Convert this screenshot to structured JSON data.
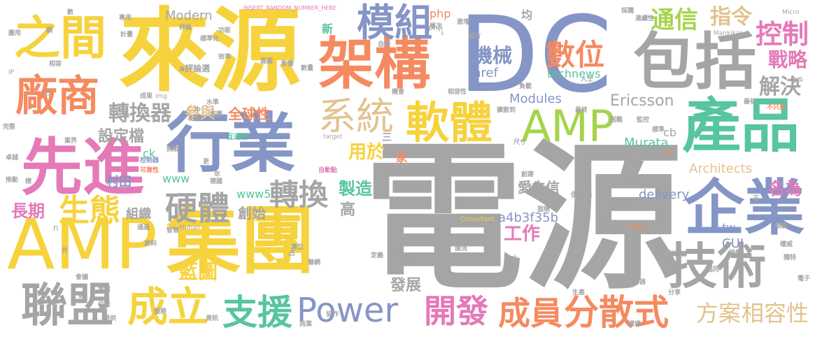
{
  "words": [
    {
      "text": "電源",
      "color": "#a5a5a5"
    },
    {
      "text": "DC",
      "color": "#8595c6"
    },
    {
      "text": "來源",
      "color": "#f6d23c"
    },
    {
      "text": "AMP",
      "color": "#f6d23c"
    },
    {
      "text": "集團",
      "color": "#f6d23c"
    },
    {
      "text": "先進",
      "color": "#e47ab8"
    },
    {
      "text": "行業",
      "color": "#8595c6"
    },
    {
      "text": "架構",
      "color": "#f58a60"
    },
    {
      "text": "包括",
      "color": "#a5a5a5"
    },
    {
      "text": "AMP",
      "color": "#a5d44c"
    },
    {
      "text": "產品",
      "color": "#57c59f"
    },
    {
      "text": "企業",
      "color": "#8595c6"
    },
    {
      "text": "技術",
      "color": "#a5a5a5"
    },
    {
      "text": "軟體",
      "color": "#f6d23c"
    },
    {
      "text": "之間",
      "color": "#f6d23c"
    },
    {
      "text": "廠商",
      "color": "#f58a60"
    },
    {
      "text": "模組",
      "color": "#8595c6"
    },
    {
      "text": "Power",
      "color": "#8595c6"
    },
    {
      "text": "聯盟",
      "color": "#a5a5a5"
    },
    {
      "text": "成立",
      "color": "#f6d23c"
    },
    {
      "text": "支援",
      "color": "#57c59f"
    },
    {
      "text": "開發",
      "color": "#e47ab8"
    },
    {
      "text": "成員",
      "color": "#f58a60"
    },
    {
      "text": "分散式",
      "color": "#f58a60"
    },
    {
      "text": "系統",
      "color": "#e2c38e"
    },
    {
      "text": "數位",
      "color": "#f58a60"
    },
    {
      "text": "控制",
      "color": "#e47ab8"
    },
    {
      "text": "通信",
      "color": "#a5d44c"
    },
    {
      "text": "指令",
      "color": "#e2c38e"
    },
    {
      "text": "機械",
      "color": "#8595c6"
    },
    {
      "text": "戰略",
      "color": "#e47ab8"
    },
    {
      "text": "解決",
      "color": "#a5a5a5"
    },
    {
      "text": "硬體",
      "color": "#a5a5a5"
    },
    {
      "text": "轉換",
      "color": "#a5a5a5"
    },
    {
      "text": "生態",
      "color": "#f6d23c"
    },
    {
      "text": "轉換器",
      "color": "#a5a5a5"
    },
    {
      "text": "方案",
      "color": "#e2c38e"
    },
    {
      "text": "相容性",
      "color": "#e2c38e"
    },
    {
      "text": "名為",
      "color": "#e47ab8"
    },
    {
      "text": "藍圖",
      "color": "#f6d23c"
    },
    {
      "text": "工作",
      "color": "#e47ab8"
    },
    {
      "text": "用於",
      "color": "#f6d23c"
    },
    {
      "text": "長期",
      "color": "#e47ab8"
    },
    {
      "text": "Modern",
      "color": "#a5a5a5"
    },
    {
      "text": "Ericsson",
      "color": "#a5a5a5"
    },
    {
      "text": "Architects",
      "color": "#e2c38e"
    },
    {
      "text": "Modules",
      "color": "#8595c6"
    },
    {
      "text": "Murata",
      "color": "#57c59f"
    },
    {
      "text": "delivery",
      "color": "#8595c6"
    },
    {
      "text": "a4b3f35b",
      "color": "#8595c6"
    },
    {
      "text": "設定檔",
      "color": "#a5a5a5"
    },
    {
      "text": "參與",
      "color": "#e2c38e"
    },
    {
      "text": "全球性",
      "color": "#f58a60"
    },
    {
      "text": "村田",
      "color": "#8595c6"
    },
    {
      "text": "製造",
      "color": "#57c59f"
    },
    {
      "text": "創始",
      "color": "#a5a5a5"
    },
    {
      "text": "組織",
      "color": "#a5a5a5"
    },
    {
      "text": "愛立信",
      "color": "#a5a5a5"
    },
    {
      "text": "發展",
      "color": "#a5a5a5"
    },
    {
      "text": "www5",
      "color": "#57c59f"
    },
    {
      "text": "www",
      "color": "#57c59f"
    },
    {
      "text": "href",
      "color": "#8595c6"
    },
    {
      "text": "technews",
      "color": "#57c59f"
    },
    {
      "text": "php",
      "color": "#f58a60"
    },
    {
      "text": "CUI",
      "color": "#8595c6"
    },
    {
      "text": "高",
      "color": "#a5a5a5"
    },
    {
      "text": "家",
      "color": "#f58a60"
    },
    {
      "text": "ck",
      "color": "#57c59f"
    },
    {
      "text": "tw",
      "color": "#8595c6"
    },
    {
      "text": "cb",
      "color": "#a5a5a5"
    },
    {
      "text": "新",
      "color": "#57c59f"
    },
    {
      "text": "均",
      "color": "#a5a5a5"
    },
    {
      "text": "php",
      "color": "#a5a5a5"
    },
    {
      "text": "n",
      "color": "#a5a5a5"
    },
    {
      "text": "INSERT_RANDOM_NUMBER_HERE",
      "color": "#e47ab8"
    },
    {
      "text": "Mankikar",
      "color": "#a5a5a5"
    },
    {
      "text": "Mohan",
      "color": "#a5a5a5"
    },
    {
      "text": "Consultant",
      "color": "#f6d23c"
    },
    {
      "text": "PMBus",
      "color": "#f58a60"
    },
    {
      "text": "Tech",
      "color": "#a5a5a5"
    },
    {
      "text": "target",
      "color": "#a5a5a5"
    },
    {
      "text": "_blank",
      "color": "#a5a5a5"
    },
    {
      "text": "img",
      "color": "#a5a5a5"
    },
    {
      "text": "Micro",
      "color": "#a5a5a5"
    },
    {
      "text": "AC",
      "color": "#f58a60"
    },
    {
      "text": "自動點",
      "color": "#e47ab8"
    },
    {
      "text": "互通性",
      "color": "#57c59f"
    },
    {
      "text": "可靠性",
      "color": "#f58a60"
    },
    {
      "text": "標準化",
      "color": "#a5a5a5"
    },
    {
      "text": "控制器",
      "color": "#8595c6"
    },
    {
      "text": "連續性",
      "color": "#a5a5a5"
    },
    {
      "text": "供應鏈",
      "color": "#a5a5a5"
    },
    {
      "text": "嘉尼克",
      "color": "#a5a5a5"
    },
    {
      "text": "驅動器",
      "color": "#a5a5a5"
    },
    {
      "text": "不只是",
      "color": "#f58a60"
    },
    {
      "text": "計畫",
      "color": "#a5a5a5"
    },
    {
      "text": "功能",
      "color": "#a5a5a5"
    },
    {
      "text": "效率",
      "color": "#a5a5a5"
    },
    {
      "text": "相容",
      "color": "#a5a5a5"
    },
    {
      "text": "成果",
      "color": "#a5a5a5"
    },
    {
      "text": "點擊",
      "color": "#a5a5a5"
    },
    {
      "text": "首圖",
      "color": "#a5a5a5"
    },
    {
      "text": "水準",
      "color": "#a5a5a5"
    },
    {
      "text": "評論",
      "color": "#a5a5a5"
    },
    {
      "text": "專用",
      "color": "#a5a5a5"
    },
    {
      "text": "層次",
      "color": "#a5a5a5"
    },
    {
      "text": "擴散到",
      "color": "#a5a5a5"
    },
    {
      "text": "最終",
      "color": "#a5a5a5"
    },
    {
      "text": "困難",
      "color": "#a5a5a5"
    },
    {
      "text": "標準",
      "color": "#a5a5a5"
    },
    {
      "text": "監控",
      "color": "#a5a5a5"
    },
    {
      "text": "尺寸",
      "color": "#a5a5a5"
    },
    {
      "text": "更多",
      "color": "#a5a5a5"
    },
    {
      "text": "創建",
      "color": "#a5a5a5"
    },
    {
      "text": "面積",
      "color": "#a5a5a5"
    },
    {
      "text": "建立",
      "color": "#a5a5a5"
    },
    {
      "text": "電氣",
      "color": "#a5a5a5"
    },
    {
      "text": "匯流",
      "color": "#a5a5a5"
    },
    {
      "text": "協同",
      "color": "#a5a5a5"
    },
    {
      "text": "權威",
      "color": "#a5a5a5"
    },
    {
      "text": "規範",
      "color": "#a5a5a5"
    },
    {
      "text": "獨特",
      "color": "#a5a5a5"
    },
    {
      "text": "電子",
      "color": "#a5a5a5"
    },
    {
      "text": "分享",
      "color": "#a5a5a5"
    },
    {
      "text": "環境",
      "color": "#a5a5a5"
    },
    {
      "text": "生產",
      "color": "#a5a5a5"
    },
    {
      "text": "協作",
      "color": "#a5a5a5"
    },
    {
      "text": "商業",
      "color": "#a5a5a5"
    },
    {
      "text": "資訊",
      "color": "#a5a5a5"
    },
    {
      "text": "電信",
      "color": "#a5a5a5"
    },
    {
      "text": "提供",
      "color": "#a5a5a5"
    },
    {
      "text": "位元",
      "color": "#a5a5a5"
    },
    {
      "text": "完整",
      "color": "#a5a5a5"
    },
    {
      "text": "卓越",
      "color": "#a5a5a5"
    },
    {
      "text": "推動",
      "color": "#a5a5a5"
    },
    {
      "text": "圖用",
      "color": "#a5a5a5"
    },
    {
      "text": "客戶",
      "color": "#a5a5a5"
    },
    {
      "text": "採購",
      "color": "#a5a5a5"
    },
    {
      "text": "人士",
      "color": "#a5a5a5"
    },
    {
      "text": "最初",
      "color": "#a5a5a5"
    },
    {
      "text": "業界",
      "color": "#a5a5a5"
    },
    {
      "text": "挑戰",
      "color": "#a5a5a5"
    },
    {
      "text": "資料",
      "color": "#a5a5a5"
    },
    {
      "text": "流量",
      "color": "#a5a5a5"
    },
    {
      "text": "定義",
      "color": "#a5a5a5"
    },
    {
      "text": "德國",
      "color": "#a5a5a5"
    },
    {
      "text": "聯網",
      "color": "#a5a5a5"
    },
    {
      "text": "自動",
      "color": "#a5a5a5"
    },
    {
      "text": "激增",
      "color": "#a5a5a5"
    },
    {
      "text": "智慧",
      "color": "#a5a5a5"
    },
    {
      "text": "通過",
      "color": "#a5a5a5"
    },
    {
      "text": "會議",
      "color": "#a5a5a5"
    },
    {
      "text": "服務",
      "color": "#a5a5a5"
    },
    {
      "text": "持續",
      "color": "#a5a5a5"
    },
    {
      "text": "負載",
      "color": "#a5a5a5"
    },
    {
      "text": "相容性",
      "color": "#a5a5a5"
    },
    {
      "text": "機會",
      "color": "#a5a5a5"
    },
    {
      "text": "晶片",
      "color": "#a5a5a5"
    },
    {
      "text": "晶圓",
      "color": "#a5a5a5"
    },
    {
      "text": "影響",
      "color": "#a5a5a5"
    },
    {
      "text": "數量",
      "color": "#a5a5a5"
    },
    {
      "text": "年",
      "color": "#a5a5a5"
    },
    {
      "text": "更",
      "color": "#a5a5a5"
    },
    {
      "text": "中",
      "color": "#a5a5a5"
    },
    {
      "text": "三",
      "color": "#a5a5a5"
    },
    {
      "text": "占",
      "color": "#a5a5a5"
    },
    {
      "text": "共",
      "color": "#a5a5a5"
    },
    {
      "text": "請",
      "color": "#a5a5a5"
    },
    {
      "text": "適",
      "color": "#a5a5a5"
    },
    {
      "text": "日",
      "color": "#a5a5a5"
    },
    {
      "text": "月",
      "color": "#a5a5a5"
    },
    {
      "text": "正",
      "color": "#a5a5a5"
    },
    {
      "text": "數",
      "color": "#a5a5a5"
    },
    {
      "text": "網",
      "color": "#a5a5a5"
    },
    {
      "text": "s",
      "color": "#a5a5a5"
    },
    {
      "text": "IP",
      "color": "#a5a5a5"
    },
    {
      "text": "a評論選",
      "color": "#a5a5a5"
    }
  ]
}
